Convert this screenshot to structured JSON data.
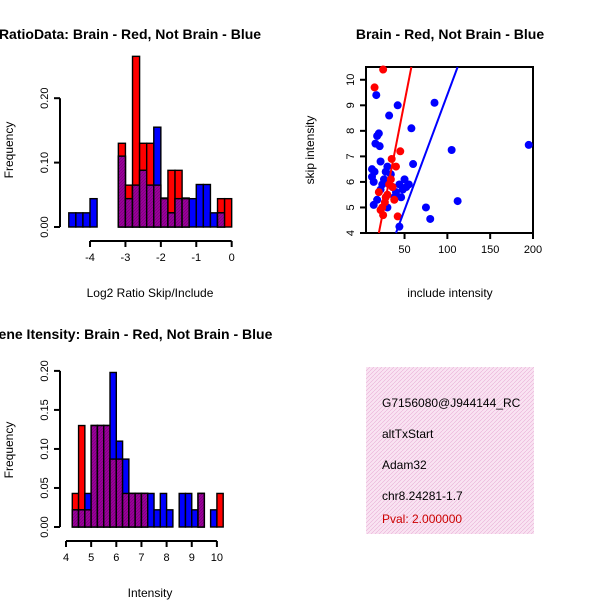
{
  "colors": {
    "red": "#ff0000",
    "blue": "#0000ff",
    "purple": "#990099",
    "panel_bg": "#f7dcef"
  },
  "chart_data": [
    {
      "type": "bar",
      "title": "RatioData: Brain - Red, Not Brain - Blue",
      "xlabel": "Log2 Ratio Skip/Include",
      "ylabel": "Frequency",
      "xlim": [
        -4.65,
        0.15
      ],
      "ylim": [
        0,
        0.25
      ],
      "xticks": [
        -4,
        -3,
        -2,
        -1,
        0
      ],
      "yticks": [
        0.0,
        0.1,
        0.2
      ],
      "bin_width": 0.2,
      "bin_starts": [
        -4.6,
        -4.4,
        -4.2,
        -4.0,
        -3.8,
        -3.6,
        -3.4,
        -3.2,
        -3.0,
        -2.8,
        -2.6,
        -2.4,
        -2.2,
        -2.0,
        -1.8,
        -1.6,
        -1.4,
        -1.2,
        -1.0,
        -0.8,
        -0.6,
        -0.4,
        -0.2
      ],
      "series": [
        {
          "name": "Brain",
          "color": "red",
          "values": [
            0,
            0,
            0,
            0,
            0,
            0,
            0,
            0.13,
            0.065,
            0.265,
            0.13,
            0.13,
            0.065,
            0.045,
            0.088,
            0.088,
            0.045,
            0,
            0,
            0,
            0,
            0.044,
            0.044
          ]
        },
        {
          "name": "Not Brain",
          "color": "blue",
          "values": [
            0.022,
            0.022,
            0.022,
            0.044,
            0,
            0,
            0,
            0.11,
            0.044,
            0.065,
            0.088,
            0.065,
            0.155,
            0.044,
            0.022,
            0.044,
            0.044,
            0.044,
            0.066,
            0.066,
            0.022,
            0.022,
            0
          ]
        }
      ]
    },
    {
      "type": "scatter",
      "title": "Brain - Red, Not Brain - Blue",
      "xlabel": "include intensity",
      "ylabel": "skip intensity",
      "xlim": [
        5,
        200
      ],
      "ylim": [
        4,
        10.5
      ],
      "xticks": [
        50,
        100,
        150,
        200
      ],
      "yticks": [
        4,
        5,
        6,
        7,
        8,
        9,
        10
      ],
      "series": [
        {
          "name": "Brain",
          "color": "red",
          "points": [
            [
              15,
              9.7
            ],
            [
              25,
              10.4
            ],
            [
              20,
              5.6
            ],
            [
              22,
              4.9
            ],
            [
              25,
              4.7
            ],
            [
              28,
              5.4
            ],
            [
              30,
              5.5
            ],
            [
              32,
              5.9
            ],
            [
              34,
              6.1
            ],
            [
              36,
              5.8
            ],
            [
              38,
              5.3
            ],
            [
              40,
              6.6
            ],
            [
              42,
              4.65
            ],
            [
              45,
              7.2
            ],
            [
              27,
              5.2
            ],
            [
              35,
              6.9
            ],
            [
              24,
              5.0
            ]
          ],
          "fit": [
            [
              20,
              4.0
            ],
            [
              58,
              10.5
            ]
          ]
        },
        {
          "name": "Not Brain",
          "color": "blue",
          "points": [
            [
              12,
              6.2
            ],
            [
              14,
              6.0
            ],
            [
              15,
              6.4
            ],
            [
              17,
              9.4
            ],
            [
              16,
              7.5
            ],
            [
              18,
              7.8
            ],
            [
              20,
              7.9
            ],
            [
              21,
              7.4
            ],
            [
              22,
              5.7
            ],
            [
              24,
              5.9
            ],
            [
              26,
              6.1
            ],
            [
              28,
              6.4
            ],
            [
              30,
              6.6
            ],
            [
              32,
              8.6
            ],
            [
              34,
              6.3
            ],
            [
              36,
              5.8
            ],
            [
              40,
              5.6
            ],
            [
              42,
              9.0
            ],
            [
              44,
              5.9
            ],
            [
              46,
              5.4
            ],
            [
              48,
              5.7
            ],
            [
              50,
              6.1
            ],
            [
              52,
              5.8
            ],
            [
              55,
              5.9
            ],
            [
              58,
              8.1
            ],
            [
              60,
              6.7
            ],
            [
              75,
              5.0
            ],
            [
              85,
              9.1
            ],
            [
              80,
              4.55
            ],
            [
              105,
              7.25
            ],
            [
              112,
              5.25
            ],
            [
              195,
              7.45
            ],
            [
              14,
              5.1
            ],
            [
              18,
              5.3
            ],
            [
              30,
              5.0
            ],
            [
              38,
              5.4
            ],
            [
              44,
              4.25
            ],
            [
              12,
              6.5
            ],
            [
              22,
              6.8
            ]
          ],
          "fit": [
            [
              40,
              4.0
            ],
            [
              112,
              10.5
            ]
          ]
        }
      ]
    },
    {
      "type": "bar",
      "title": "Gene Itensity: Brain - Red, Not Brain - Blue",
      "xlabel": "Intensity",
      "ylabel": "Frequency",
      "xlim": [
        4.0,
        10.6
      ],
      "ylim": [
        0,
        0.205
      ],
      "xticks": [
        4,
        5,
        6,
        7,
        8,
        9,
        10
      ],
      "yticks": [
        0.0,
        0.05,
        0.1,
        0.15,
        0.2
      ],
      "bin_width": 0.25,
      "bin_starts": [
        4.25,
        4.5,
        4.75,
        5.0,
        5.25,
        5.5,
        5.75,
        6.0,
        6.25,
        6.5,
        6.75,
        7.0,
        7.25,
        7.5,
        7.75,
        8.0,
        8.25,
        8.5,
        8.75,
        9.0,
        9.25,
        9.5,
        9.75,
        10.0
      ],
      "series": [
        {
          "name": "Brain",
          "color": "red",
          "values": [
            0.043,
            0.13,
            0.022,
            0.13,
            0.13,
            0.13,
            0.087,
            0.087,
            0.043,
            0.043,
            0.043,
            0.043,
            0,
            0,
            0,
            0,
            0,
            0,
            0,
            0,
            0.043,
            0,
            0,
            0.043
          ]
        },
        {
          "name": "Not Brain",
          "color": "blue",
          "values": [
            0.022,
            0.022,
            0.043,
            0.13,
            0.13,
            0.13,
            0.198,
            0.11,
            0.087,
            0.043,
            0.043,
            0.043,
            0.043,
            0.022,
            0.043,
            0.022,
            0,
            0.043,
            0.043,
            0.022,
            0.043,
            0,
            0.022,
            0
          ]
        }
      ]
    }
  ],
  "info_panel": {
    "probe_id": "G7156080@J944144_RC",
    "event_type": "altTxStart",
    "gene": "Adam32",
    "location": "chr8.24281-1.7",
    "pval": "Pval: 2.000000"
  }
}
